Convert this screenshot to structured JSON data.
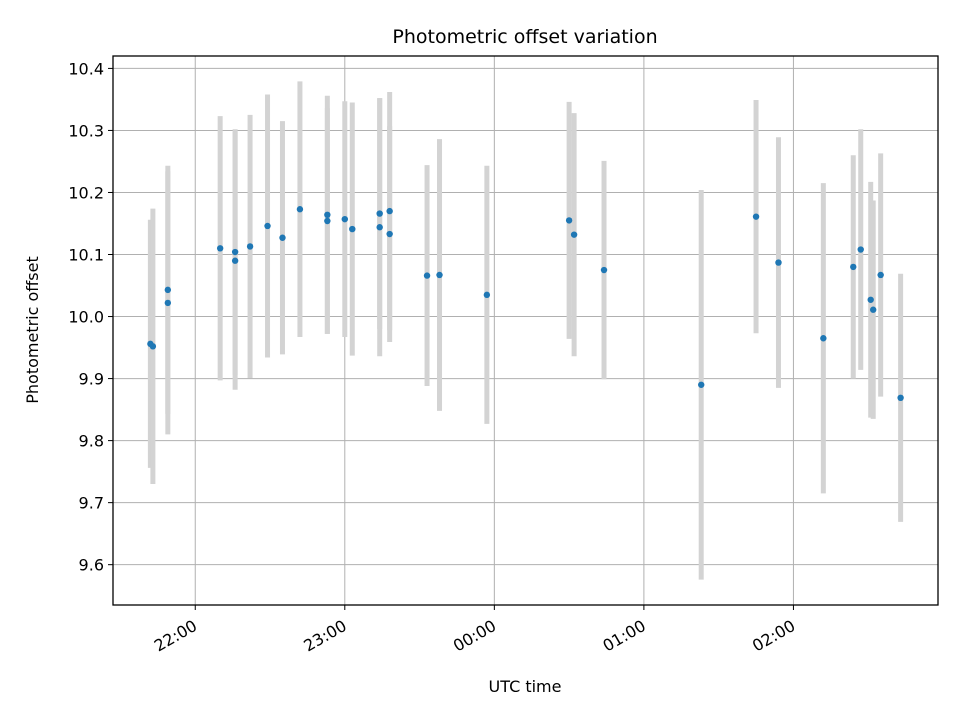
{
  "chart_data": {
    "type": "scatter",
    "title": "Photometric offset variation",
    "xlabel": "UTC time",
    "ylabel": "Photometric offset",
    "x_scale": "time",
    "x_unit": "hours UTC",
    "xlim": [
      "21:27",
      "02:58"
    ],
    "ylim": [
      9.535,
      10.42
    ],
    "x_ticks": [
      "22:00",
      "23:00",
      "00:00",
      "01:00",
      "02:00"
    ],
    "y_ticks": [
      "9.6",
      "9.7",
      "9.8",
      "9.9",
      "10.0",
      "10.1",
      "10.2",
      "10.3",
      "10.4"
    ],
    "grid": true,
    "marker_color": "#1f77b4",
    "errorbar_color": "#d3d3d3",
    "points": [
      {
        "time": "21:42",
        "y": 9.956,
        "err": 0.2
      },
      {
        "time": "21:43",
        "y": 9.952,
        "err": 0.222
      },
      {
        "time": "21:49",
        "y": 10.043,
        "err": 0.2
      },
      {
        "time": "21:49",
        "y": 10.022,
        "err": 0.212
      },
      {
        "time": "22:10",
        "y": 10.11,
        "err": 0.213
      },
      {
        "time": "22:16",
        "y": 10.104,
        "err": 0.198
      },
      {
        "time": "22:16",
        "y": 10.09,
        "err": 0.208
      },
      {
        "time": "22:22",
        "y": 10.113,
        "err": 0.212
      },
      {
        "time": "22:29",
        "y": 10.146,
        "err": 0.212
      },
      {
        "time": "22:35",
        "y": 10.127,
        "err": 0.188
      },
      {
        "time": "22:42",
        "y": 10.173,
        "err": 0.206
      },
      {
        "time": "22:53",
        "y": 10.164,
        "err": 0.192
      },
      {
        "time": "22:53",
        "y": 10.154,
        "err": 0.182
      },
      {
        "time": "23:00",
        "y": 10.157,
        "err": 0.19
      },
      {
        "time": "23:03",
        "y": 10.141,
        "err": 0.204
      },
      {
        "time": "23:14",
        "y": 10.166,
        "err": 0.186
      },
      {
        "time": "23:14",
        "y": 10.144,
        "err": 0.208
      },
      {
        "time": "23:18",
        "y": 10.17,
        "err": 0.192
      },
      {
        "time": "23:18",
        "y": 10.133,
        "err": 0.174
      },
      {
        "time": "23:33",
        "y": 10.066,
        "err": 0.178
      },
      {
        "time": "23:38",
        "y": 10.067,
        "err": 0.219
      },
      {
        "time": "23:57",
        "y": 10.035,
        "err": 0.208
      },
      {
        "time": "00:30",
        "y": 10.155,
        "err": 0.191
      },
      {
        "time": "00:32",
        "y": 10.132,
        "err": 0.196
      },
      {
        "time": "00:44",
        "y": 10.075,
        "err": 0.176
      },
      {
        "time": "01:23",
        "y": 9.89,
        "err": 0.314
      },
      {
        "time": "01:45",
        "y": 10.161,
        "err": 0.188
      },
      {
        "time": "01:54",
        "y": 10.087,
        "err": 0.202
      },
      {
        "time": "02:12",
        "y": 9.965,
        "err": 0.25
      },
      {
        "time": "02:24",
        "y": 10.08,
        "err": 0.18
      },
      {
        "time": "02:27",
        "y": 10.108,
        "err": 0.194
      },
      {
        "time": "02:31",
        "y": 10.027,
        "err": 0.19
      },
      {
        "time": "02:32",
        "y": 10.011,
        "err": 0.176
      },
      {
        "time": "02:35",
        "y": 10.067,
        "err": 0.196
      },
      {
        "time": "02:43",
        "y": 9.869,
        "err": 0.2
      }
    ]
  }
}
